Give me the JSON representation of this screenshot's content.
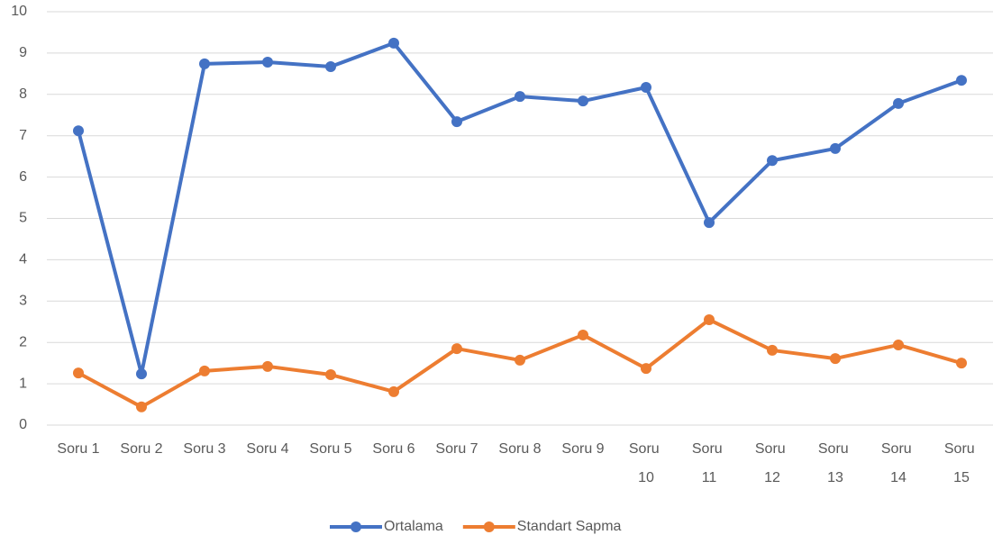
{
  "chart_data": {
    "type": "line",
    "categories": [
      "Soru 1",
      "Soru 2",
      "Soru 3",
      "Soru 4",
      "Soru 5",
      "Soru 6",
      "Soru 7",
      "Soru 8",
      "Soru 9",
      "Soru 10",
      "Soru 11",
      "Soru 12",
      "Soru 13",
      "Soru 14",
      "Soru 15"
    ],
    "series": [
      {
        "name": "Ortalama",
        "color": "#4472c4",
        "values": [
          7.12,
          1.24,
          8.74,
          8.78,
          8.67,
          9.24,
          7.34,
          7.95,
          7.84,
          8.17,
          4.9,
          6.4,
          6.69,
          7.78,
          8.34
        ]
      },
      {
        "name": "Standart Sapma",
        "color": "#ed7d31",
        "values": [
          1.26,
          0.44,
          1.31,
          1.42,
          1.22,
          0.81,
          1.85,
          1.57,
          2.18,
          1.37,
          2.55,
          1.81,
          1.61,
          1.94,
          1.5
        ]
      }
    ],
    "ylim": [
      0,
      10
    ],
    "yticks": [
      0,
      1,
      2,
      3,
      4,
      5,
      6,
      7,
      8,
      9,
      10
    ],
    "grid": true,
    "legend": "bottom"
  }
}
